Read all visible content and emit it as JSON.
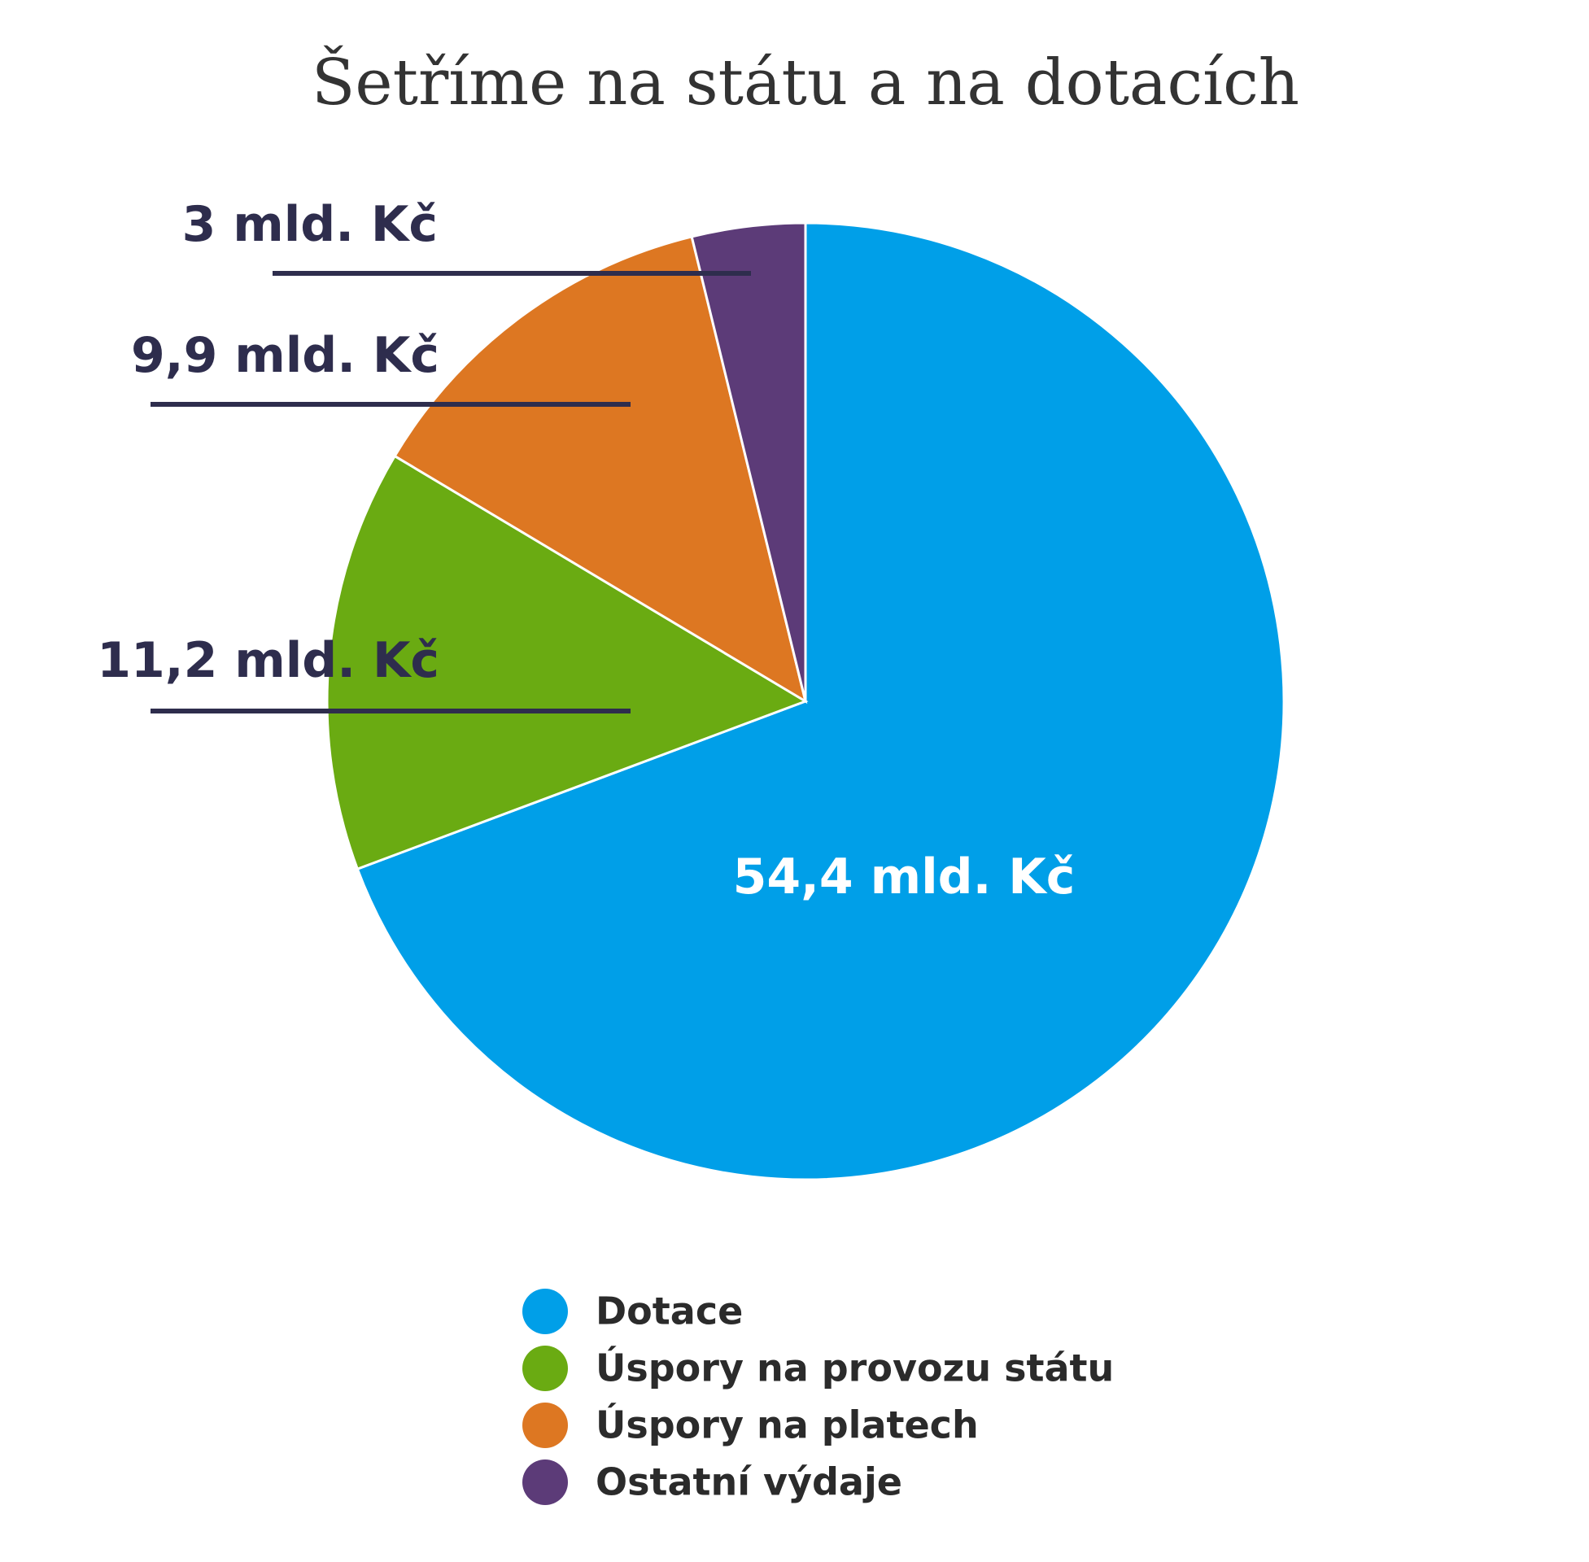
{
  "chart_data": {
    "type": "pie",
    "title": "Šetříme na státu a na dotacích",
    "categories": [
      "Dotace",
      "Úspory na provozu státu",
      "Úspory na platech",
      "Ostatní výdaje"
    ],
    "values": [
      54.4,
      11.2,
      9.9,
      3
    ],
    "value_labels": [
      "54,4 mld. Kč",
      "11,2 mld. Kč",
      "9,9 mld. Kč",
      "3 mld. Kč"
    ],
    "colors": [
      "#009fe8",
      "#6aab12",
      "#dd7722",
      "#5c3b78"
    ]
  }
}
